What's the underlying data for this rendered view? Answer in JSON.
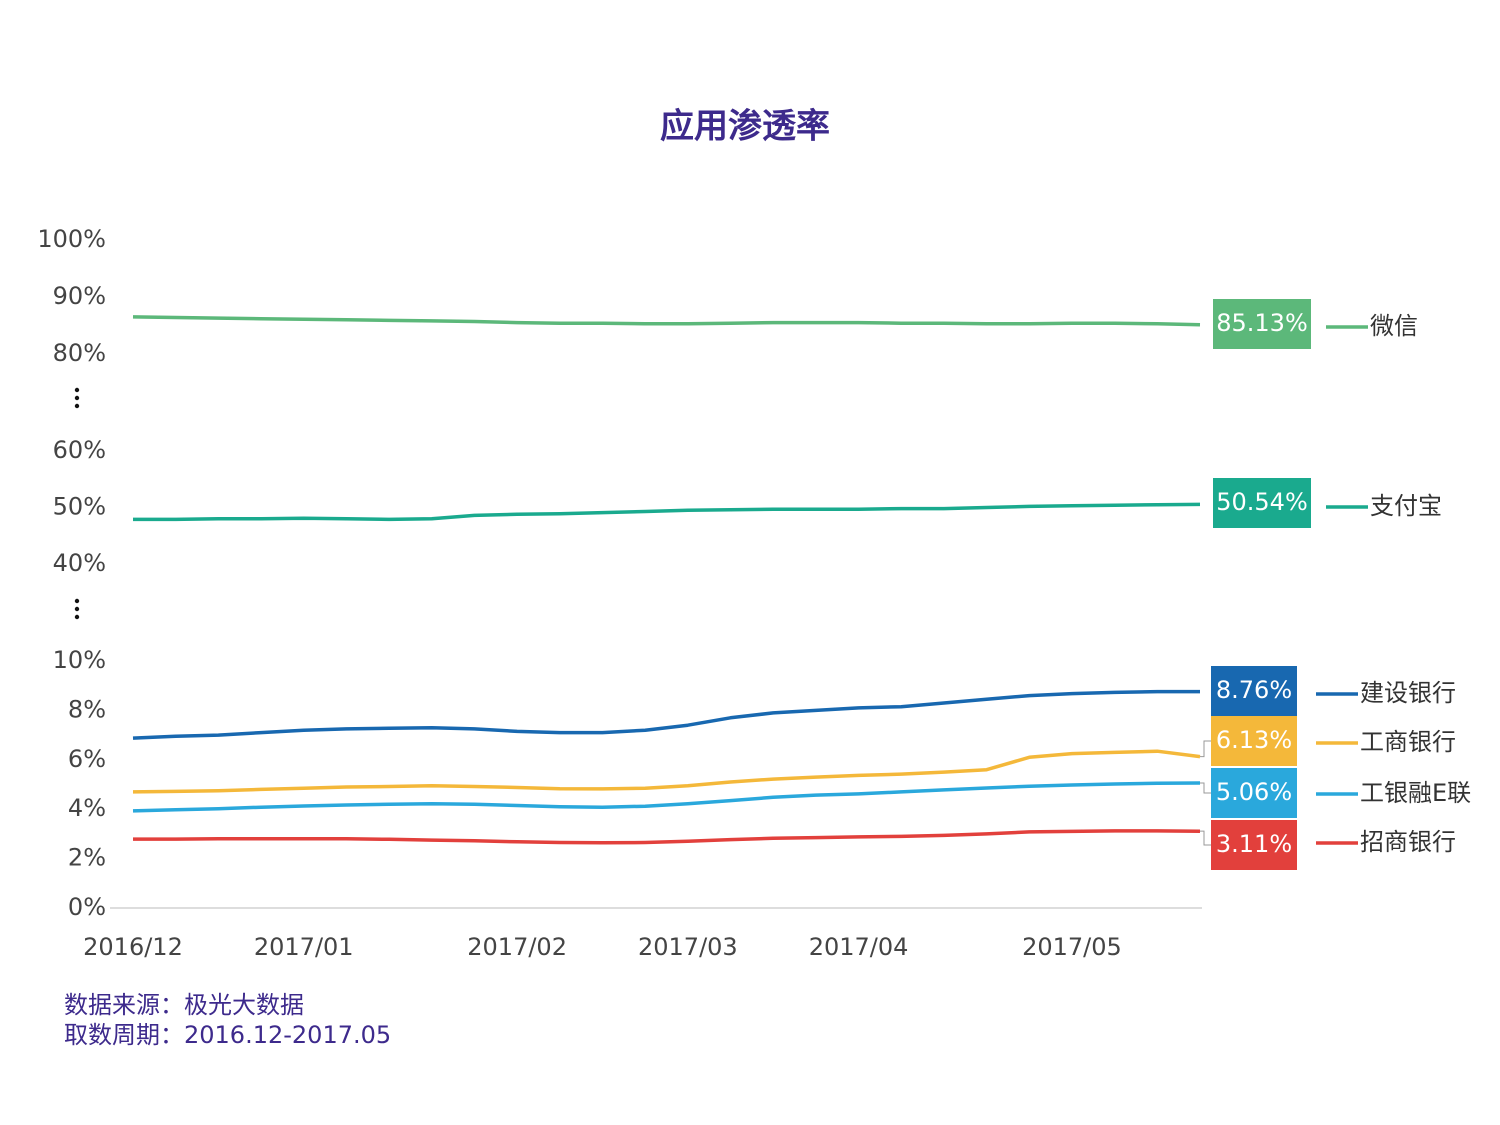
{
  "chart_data": {
    "type": "line",
    "title": "应用渗透率",
    "categories": [
      "2016/12",
      null,
      null,
      null,
      "2017/01",
      null,
      null,
      null,
      null,
      "2017/02",
      null,
      null,
      null,
      "2017/03",
      null,
      null,
      null,
      "2017/04",
      null,
      null,
      null,
      null,
      "2017/05",
      null,
      null,
      null
    ],
    "y_segments": [
      {
        "ylim": [
          0,
          10
        ],
        "yticks": [
          {
            "value": 0,
            "label": "0%"
          },
          {
            "value": 2,
            "label": "2%"
          },
          {
            "value": 4,
            "label": "4%"
          },
          {
            "value": 6,
            "label": "6%"
          },
          {
            "value": 8,
            "label": "8%"
          },
          {
            "value": 10,
            "label": "10%"
          }
        ]
      },
      {
        "ylim": [
          40,
          60
        ],
        "yticks": [
          {
            "value": 40,
            "label": "40%"
          },
          {
            "value": 50,
            "label": "50%"
          },
          {
            "value": 60,
            "label": "60%"
          }
        ]
      },
      {
        "ylim": [
          80,
          100
        ],
        "yticks": [
          {
            "value": 80,
            "label": "80%"
          },
          {
            "value": 90,
            "label": "90%"
          },
          {
            "value": 100,
            "label": "100%"
          }
        ]
      }
    ],
    "series": [
      {
        "name": "微信",
        "color": "#5cb87a",
        "values": [
          86.5,
          86.4,
          86.3,
          86.2,
          86.1,
          86.0,
          85.9,
          85.8,
          85.7,
          85.5,
          85.4,
          85.4,
          85.3,
          85.3,
          85.4,
          85.5,
          85.5,
          85.5,
          85.4,
          85.4,
          85.3,
          85.3,
          85.4,
          85.4,
          85.3,
          85.13
        ],
        "value_labels": [
          null,
          null,
          null,
          null,
          null,
          null,
          null,
          null,
          null,
          null,
          null,
          null,
          null,
          null,
          null,
          null,
          null,
          null,
          null,
          null,
          null,
          null,
          null,
          null,
          null,
          "85.13%"
        ]
      },
      {
        "name": "支付宝",
        "color": "#1aaa8e",
        "values": [
          47.9,
          47.9,
          48.0,
          48.0,
          48.1,
          48.0,
          47.9,
          48.0,
          48.6,
          48.8,
          48.9,
          49.1,
          49.3,
          49.5,
          49.6,
          49.7,
          49.7,
          49.7,
          49.8,
          49.8,
          50.0,
          50.2,
          50.3,
          50.4,
          50.5,
          50.54
        ],
        "value_labels": [
          null,
          null,
          null,
          null,
          null,
          null,
          null,
          null,
          null,
          null,
          null,
          null,
          null,
          null,
          null,
          null,
          null,
          null,
          null,
          null,
          null,
          null,
          null,
          null,
          null,
          "50.54%"
        ]
      },
      {
        "name": "建设银行",
        "color": "#1868b0",
        "values": [
          6.88,
          6.95,
          7.0,
          7.1,
          7.2,
          7.25,
          7.28,
          7.3,
          7.25,
          7.15,
          7.1,
          7.1,
          7.2,
          7.4,
          7.7,
          7.9,
          8.0,
          8.1,
          8.15,
          8.3,
          8.45,
          8.6,
          8.68,
          8.73,
          8.76,
          8.76
        ],
        "value_labels": [
          null,
          null,
          null,
          null,
          null,
          null,
          null,
          null,
          null,
          null,
          null,
          null,
          null,
          null,
          null,
          null,
          null,
          null,
          null,
          null,
          null,
          null,
          null,
          null,
          null,
          "8.76%"
        ]
      },
      {
        "name": "工商银行",
        "color": "#f4b83a",
        "values": [
          4.7,
          4.72,
          4.75,
          4.8,
          4.85,
          4.9,
          4.92,
          4.95,
          4.92,
          4.88,
          4.83,
          4.82,
          4.85,
          4.95,
          5.1,
          5.22,
          5.3,
          5.37,
          5.42,
          5.5,
          5.6,
          6.1,
          6.25,
          6.3,
          6.35,
          6.13
        ],
        "value_labels": [
          null,
          null,
          null,
          null,
          null,
          null,
          null,
          null,
          null,
          null,
          null,
          null,
          null,
          null,
          null,
          null,
          null,
          null,
          null,
          null,
          null,
          null,
          null,
          null,
          null,
          "6.13%"
        ]
      },
      {
        "name": "工银融E联",
        "color": "#2aa8dc",
        "values": [
          3.93,
          3.98,
          4.02,
          4.08,
          4.13,
          4.17,
          4.2,
          4.22,
          4.2,
          4.15,
          4.1,
          4.08,
          4.12,
          4.22,
          4.35,
          4.48,
          4.57,
          4.62,
          4.7,
          4.78,
          4.86,
          4.93,
          4.98,
          5.02,
          5.05,
          5.06
        ],
        "value_labels": [
          null,
          null,
          null,
          null,
          null,
          null,
          null,
          null,
          null,
          null,
          null,
          null,
          null,
          null,
          null,
          null,
          null,
          null,
          null,
          null,
          null,
          null,
          null,
          null,
          null,
          "5.06%"
        ]
      },
      {
        "name": "招商银行",
        "color": "#e2403c",
        "values": [
          2.79,
          2.79,
          2.8,
          2.8,
          2.8,
          2.8,
          2.78,
          2.75,
          2.72,
          2.68,
          2.65,
          2.64,
          2.65,
          2.7,
          2.77,
          2.82,
          2.85,
          2.88,
          2.9,
          2.94,
          3.0,
          3.08,
          3.1,
          3.12,
          3.12,
          3.11
        ],
        "value_labels": [
          null,
          null,
          null,
          null,
          null,
          null,
          null,
          null,
          null,
          null,
          null,
          null,
          null,
          null,
          null,
          null,
          null,
          null,
          null,
          null,
          null,
          null,
          null,
          null,
          null,
          "3.11%"
        ]
      }
    ],
    "source": "数据来源：极光大数据",
    "period": "取数周期：2016.12-2017.05"
  }
}
